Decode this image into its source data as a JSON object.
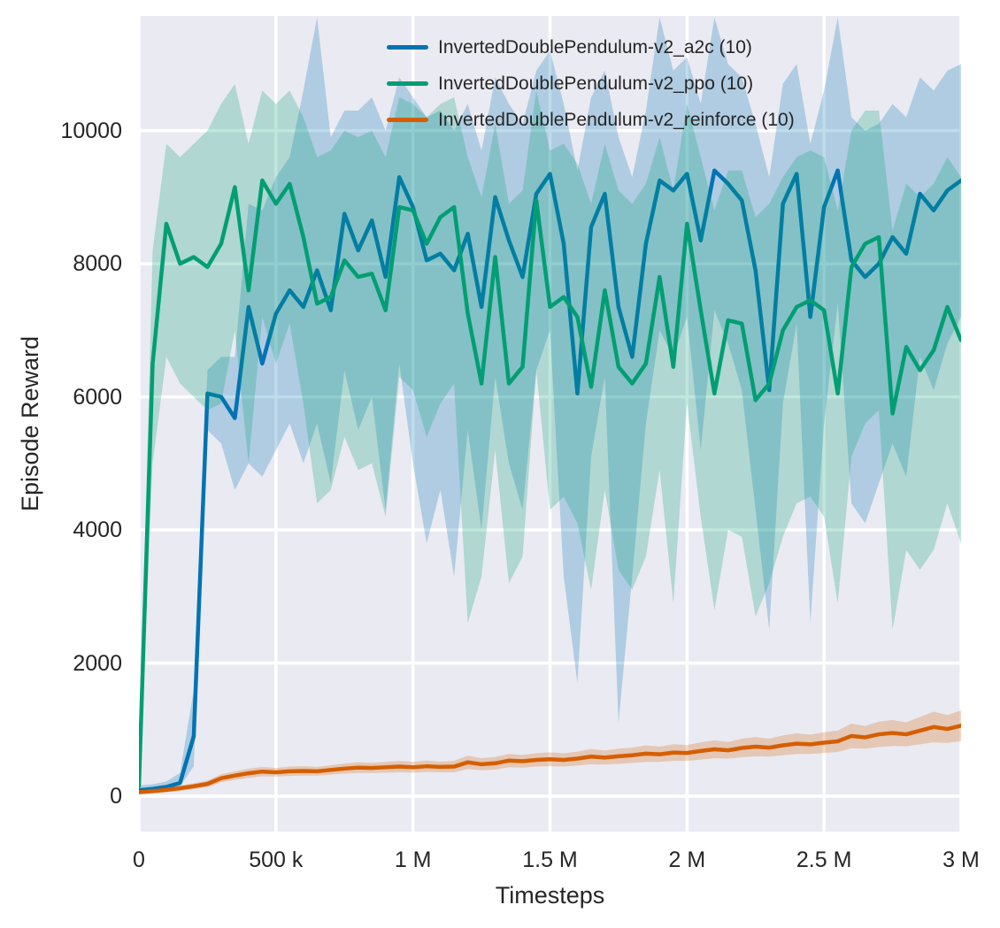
{
  "figure": {
    "background": "#ffffff",
    "plot_background": "#eaeaf2",
    "grid_color": "#ffffff",
    "text_color": "#262626"
  },
  "chart_data": {
    "type": "line",
    "title": "",
    "xlabel": "Timesteps",
    "ylabel": "Episode Reward",
    "grid": true,
    "legend_position": "upper center",
    "band_opacity": 0.25,
    "xlim": [
      0,
      3000000
    ],
    "ylim": [
      -531,
      11722
    ],
    "x_ticks": [
      {
        "v": 0,
        "label": "0"
      },
      {
        "v": 500000,
        "label": "500 k"
      },
      {
        "v": 1000000,
        "label": "1 M"
      },
      {
        "v": 1500000,
        "label": "1.5 M"
      },
      {
        "v": 2000000,
        "label": "2 M"
      },
      {
        "v": 2500000,
        "label": "2.5 M"
      },
      {
        "v": 3000000,
        "label": "3 M"
      }
    ],
    "y_ticks": [
      {
        "v": 0,
        "label": "0"
      },
      {
        "v": 2000,
        "label": "2000"
      },
      {
        "v": 4000,
        "label": "4000"
      },
      {
        "v": 6000,
        "label": "6000"
      },
      {
        "v": 8000,
        "label": "8000"
      },
      {
        "v": 10000,
        "label": "10000"
      }
    ],
    "x": [
      0,
      50000,
      100000,
      150000,
      200000,
      250000,
      300000,
      350000,
      400000,
      450000,
      500000,
      550000,
      600000,
      650000,
      700000,
      750000,
      800000,
      850000,
      900000,
      950000,
      1000000,
      1050000,
      1100000,
      1150000,
      1200000,
      1250000,
      1300000,
      1350000,
      1400000,
      1450000,
      1500000,
      1550000,
      1600000,
      1650000,
      1700000,
      1750000,
      1800000,
      1850000,
      1900000,
      1950000,
      2000000,
      2050000,
      2100000,
      2150000,
      2200000,
      2250000,
      2300000,
      2350000,
      2400000,
      2450000,
      2500000,
      2550000,
      2600000,
      2650000,
      2700000,
      2750000,
      2800000,
      2850000,
      2900000,
      2950000,
      3000000
    ],
    "series": [
      {
        "name": "InvertedDoublePendulum-v2_a2c (10)",
        "color": "#0173b2",
        "mean": [
          90,
          110,
          140,
          200,
          900,
          6050,
          6000,
          5680,
          7350,
          6500,
          7250,
          7600,
          7350,
          7900,
          7300,
          8750,
          8200,
          8650,
          7800,
          9300,
          8850,
          8050,
          8150,
          7900,
          8450,
          7350,
          9000,
          8350,
          7800,
          9050,
          9350,
          8300,
          6050,
          8550,
          9050,
          7350,
          6600,
          8300,
          9250,
          9100,
          9350,
          8350,
          9400,
          9200,
          8950,
          7900,
          6100,
          8900,
          9350,
          7200,
          8850,
          9400,
          8050,
          7800,
          8000,
          8400,
          8150,
          9050,
          8800,
          9100,
          9250
        ],
        "lower": [
          50,
          70,
          100,
          150,
          450,
          5500,
          5300,
          4600,
          5000,
          4800,
          5200,
          5600,
          5000,
          5600,
          4700,
          6400,
          5500,
          6000,
          4300,
          6500,
          5000,
          3800,
          4600,
          3300,
          5500,
          4000,
          6300,
          5000,
          4300,
          6400,
          7000,
          3300,
          1700,
          5100,
          6300,
          1100,
          3300,
          5600,
          7000,
          6600,
          7200,
          5200,
          7300,
          6800,
          6100,
          4300,
          2500,
          5900,
          7100,
          2600,
          5600,
          7400,
          4400,
          4100,
          4700,
          5300,
          4800,
          6600,
          6100,
          6800,
          7200
        ],
        "upper": [
          160,
          180,
          220,
          350,
          1600,
          6400,
          6600,
          6600,
          8900,
          8800,
          9300,
          9600,
          10600,
          11700,
          9900,
          10300,
          10300,
          10500,
          10000,
          10800,
          10500,
          10200,
          10300,
          10000,
          10400,
          9700,
          10800,
          10400,
          10100,
          10900,
          11200,
          10400,
          9400,
          10500,
          10900,
          9900,
          9300,
          10300,
          11700,
          10900,
          11100,
          10400,
          11700,
          11000,
          10800,
          10100,
          9300,
          10700,
          11000,
          9800,
          10600,
          11700,
          10200,
          10000,
          10100,
          10400,
          10200,
          10800,
          10600,
          10900,
          11000
        ]
      },
      {
        "name": "InvertedDoublePendulum-v2_ppo (10)",
        "color": "#029e73",
        "mean": [
          150,
          6500,
          8600,
          8000,
          8100,
          7950,
          8300,
          9150,
          7600,
          9250,
          8900,
          9200,
          8400,
          7400,
          7500,
          8050,
          7800,
          7850,
          7300,
          8850,
          8800,
          8300,
          8700,
          8850,
          7250,
          6200,
          8100,
          6200,
          6450,
          8950,
          7350,
          7500,
          7200,
          6150,
          7600,
          6450,
          6200,
          6500,
          7800,
          6450,
          8600,
          7300,
          6050,
          7150,
          7100,
          5950,
          6200,
          7000,
          7350,
          7450,
          7300,
          6050,
          7950,
          8300,
          8400,
          5750,
          6750,
          6400,
          6700,
          7350,
          6850
        ],
        "lower": [
          60,
          5000,
          6600,
          6200,
          6000,
          5800,
          5900,
          7000,
          5000,
          7200,
          6500,
          7100,
          5900,
          4400,
          4600,
          5400,
          4900,
          5000,
          4200,
          6300,
          6100,
          5400,
          5900,
          6200,
          2600,
          3300,
          5200,
          3200,
          3600,
          6400,
          4300,
          4500,
          4100,
          3100,
          4600,
          3400,
          3100,
          3600,
          4900,
          2900,
          5900,
          4200,
          2800,
          4000,
          3900,
          2700,
          3200,
          3900,
          4400,
          4500,
          4200,
          2900,
          5100,
          5600,
          5800,
          2500,
          3700,
          3400,
          3700,
          4400,
          3800
        ],
        "upper": [
          400,
          8200,
          9800,
          9600,
          9800,
          10000,
          10400,
          10700,
          9800,
          10600,
          10400,
          10600,
          10200,
          9600,
          9700,
          10000,
          9900,
          10000,
          9600,
          10500,
          10400,
          10200,
          10400,
          10500,
          9600,
          9000,
          10100,
          8900,
          9100,
          10600,
          9700,
          9800,
          9500,
          8900,
          9800,
          9100,
          8900,
          9200,
          9900,
          9100,
          10400,
          9600,
          8800,
          9400,
          9400,
          8700,
          8900,
          9300,
          9600,
          9700,
          9600,
          8800,
          10000,
          10300,
          10300,
          8500,
          9200,
          9000,
          9200,
          9600,
          9300
        ]
      },
      {
        "name": "InvertedDoublePendulum-v2_reinforce (10)",
        "color": "#d55e00",
        "mean": [
          60,
          75,
          95,
          120,
          150,
          185,
          270,
          310,
          345,
          370,
          360,
          375,
          380,
          375,
          395,
          415,
          430,
          425,
          435,
          445,
          435,
          450,
          440,
          445,
          510,
          480,
          495,
          535,
          525,
          545,
          555,
          545,
          565,
          595,
          580,
          600,
          615,
          640,
          630,
          655,
          650,
          680,
          705,
          690,
          725,
          745,
          730,
          765,
          790,
          780,
          805,
          825,
          905,
          885,
          930,
          950,
          930,
          985,
          1040,
          1010,
          1060
        ],
        "lower": [
          35,
          45,
          60,
          80,
          105,
          135,
          210,
          245,
          275,
          300,
          295,
          305,
          310,
          310,
          325,
          340,
          350,
          350,
          355,
          360,
          355,
          365,
          360,
          360,
          410,
          390,
          400,
          435,
          430,
          445,
          450,
          445,
          460,
          480,
          475,
          485,
          500,
          515,
          515,
          530,
          530,
          550,
          570,
          565,
          585,
          600,
          595,
          615,
          635,
          635,
          650,
          665,
          720,
          715,
          740,
          755,
          750,
          780,
          810,
          800,
          830
        ],
        "upper": [
          85,
          105,
          130,
          160,
          195,
          235,
          330,
          375,
          415,
          440,
          425,
          445,
          450,
          440,
          465,
          490,
          510,
          500,
          515,
          530,
          515,
          535,
          520,
          530,
          610,
          570,
          590,
          635,
          620,
          645,
          660,
          645,
          670,
          710,
          685,
          715,
          730,
          765,
          745,
          780,
          770,
          810,
          840,
          815,
          865,
          890,
          865,
          915,
          945,
          925,
          960,
          985,
          1090,
          1055,
          1120,
          1145,
          1110,
          1190,
          1270,
          1220,
          1290
        ]
      }
    ]
  }
}
